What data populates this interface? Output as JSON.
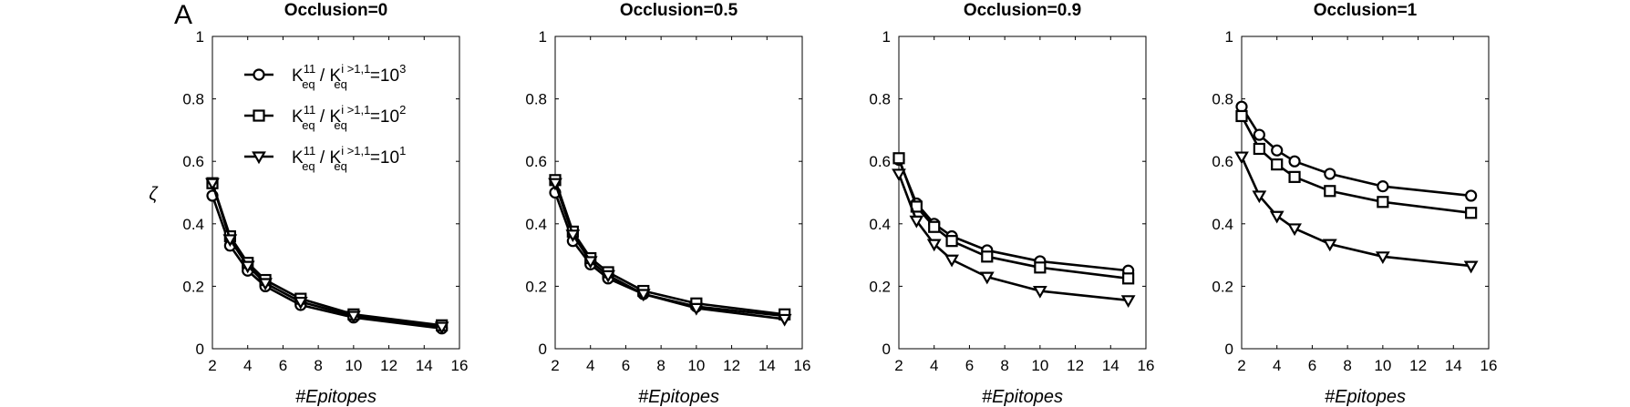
{
  "figure": {
    "panel_letter": "A",
    "legend_entries": [
      {
        "marker": "circle",
        "base": "K",
        "sub1": "eq",
        "sup1": "11",
        "sep": " / ",
        "sub2": "eq",
        "sup2": "i >1,1",
        "eq": "=10",
        "exp": "3"
      },
      {
        "marker": "square",
        "base": "K",
        "sub1": "eq",
        "sup1": "11",
        "sep": " / ",
        "sub2": "eq",
        "sup2": "i >1,1",
        "eq": "=10",
        "exp": "2"
      },
      {
        "marker": "triangle-down",
        "base": "K",
        "sub1": "eq",
        "sup1": "11",
        "sep": " / ",
        "sub2": "eq",
        "sup2": "i >1,1",
        "eq": "=10",
        "exp": "1"
      }
    ],
    "colors": {
      "line": "#000000",
      "marker_fill": "#ffffff",
      "background": "#ffffff"
    }
  },
  "chart_data": [
    {
      "type": "line",
      "title": "Occlusion=0",
      "xlabel": "#Epitopes",
      "ylabel": "ζ",
      "xlim": [
        2,
        16
      ],
      "ylim": [
        0,
        1
      ],
      "xticks": [
        "2",
        "4",
        "6",
        "8",
        "10",
        "12",
        "14",
        "16"
      ],
      "yticks": [
        "0",
        "0.2",
        "0.4",
        "0.6",
        "0.8",
        "1"
      ],
      "legend": "top-right",
      "x": [
        2,
        3,
        4,
        5,
        7,
        10,
        15
      ],
      "series": [
        {
          "marker": "circle",
          "values": [
            0.49,
            0.33,
            0.25,
            0.2,
            0.14,
            0.1,
            0.065
          ]
        },
        {
          "marker": "square",
          "values": [
            0.53,
            0.36,
            0.275,
            0.22,
            0.16,
            0.11,
            0.075
          ]
        },
        {
          "marker": "triangle-down",
          "values": [
            0.53,
            0.35,
            0.265,
            0.21,
            0.15,
            0.105,
            0.07
          ]
        }
      ]
    },
    {
      "type": "line",
      "title": "Occlusion=0.5",
      "xlabel": "#Epitopes",
      "ylabel": "",
      "xlim": [
        2,
        16
      ],
      "ylim": [
        0,
        1
      ],
      "xticks": [
        "2",
        "4",
        "6",
        "8",
        "10",
        "12",
        "14",
        "16"
      ],
      "yticks": [
        "0",
        "0.2",
        "0.4",
        "0.6",
        "0.8",
        "1"
      ],
      "x": [
        2,
        3,
        4,
        5,
        7,
        10,
        15
      ],
      "series": [
        {
          "marker": "circle",
          "values": [
            0.5,
            0.345,
            0.27,
            0.225,
            0.175,
            0.135,
            0.105
          ]
        },
        {
          "marker": "square",
          "values": [
            0.54,
            0.375,
            0.29,
            0.245,
            0.185,
            0.145,
            0.11
          ]
        },
        {
          "marker": "triangle-down",
          "values": [
            0.53,
            0.365,
            0.28,
            0.235,
            0.175,
            0.13,
            0.095
          ]
        }
      ]
    },
    {
      "type": "line",
      "title": "Occlusion=0.9",
      "xlabel": "#Epitopes",
      "ylabel": "",
      "xlim": [
        2,
        16
      ],
      "ylim": [
        0,
        1
      ],
      "xticks": [
        "2",
        "4",
        "6",
        "8",
        "10",
        "12",
        "14",
        "16"
      ],
      "yticks": [
        "0",
        "0.2",
        "0.4",
        "0.6",
        "0.8",
        "1"
      ],
      "x": [
        2,
        3,
        4,
        5,
        7,
        10,
        15
      ],
      "series": [
        {
          "marker": "circle",
          "values": [
            0.605,
            0.465,
            0.4,
            0.36,
            0.315,
            0.28,
            0.25
          ]
        },
        {
          "marker": "square",
          "values": [
            0.61,
            0.455,
            0.39,
            0.345,
            0.295,
            0.26,
            0.225
          ]
        },
        {
          "marker": "triangle-down",
          "values": [
            0.56,
            0.41,
            0.335,
            0.285,
            0.23,
            0.185,
            0.155
          ]
        }
      ]
    },
    {
      "type": "line",
      "title": "Occlusion=1",
      "xlabel": "#Epitopes",
      "ylabel": "",
      "xlim": [
        2,
        16
      ],
      "ylim": [
        0,
        1
      ],
      "xticks": [
        "2",
        "4",
        "6",
        "8",
        "10",
        "12",
        "14",
        "16"
      ],
      "yticks": [
        "0",
        "0.2",
        "0.4",
        "0.6",
        "0.8",
        "1"
      ],
      "x": [
        2,
        3,
        4,
        5,
        7,
        10,
        15
      ],
      "series": [
        {
          "marker": "circle",
          "values": [
            0.775,
            0.685,
            0.635,
            0.6,
            0.56,
            0.52,
            0.49
          ]
        },
        {
          "marker": "square",
          "values": [
            0.745,
            0.64,
            0.59,
            0.55,
            0.505,
            0.47,
            0.435
          ]
        },
        {
          "marker": "triangle-down",
          "values": [
            0.615,
            0.49,
            0.425,
            0.385,
            0.335,
            0.295,
            0.265
          ]
        }
      ]
    }
  ]
}
